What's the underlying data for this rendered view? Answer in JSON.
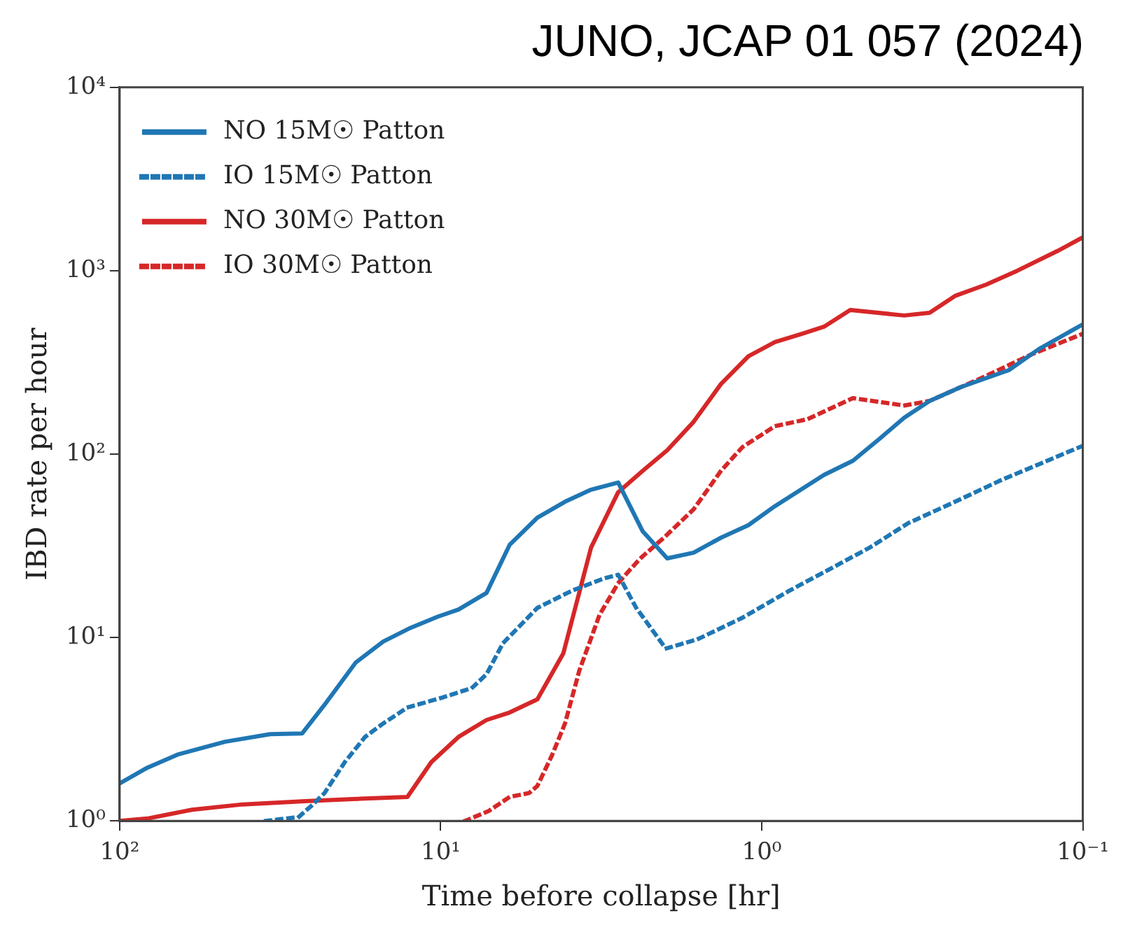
{
  "chart_data": {
    "type": "line",
    "title": "JUNO, JCAP 01 057 (2024)",
    "xlabel": "Time before collapse [hr]",
    "ylabel": "IBD rate per hour",
    "log": "xy",
    "grid": false,
    "legend": "top left",
    "marker": "none",
    "xlim": [
      100,
      0.1
    ],
    "xticks": [
      {
        "value": 100,
        "label": "10²"
      },
      {
        "value": 10,
        "label": "10¹"
      },
      {
        "value": 1,
        "label": "10⁰"
      },
      {
        "value": 0.1,
        "label": "10⁻¹"
      }
    ],
    "ylim": [
      1,
      10000
    ],
    "yticks": [
      {
        "value": 1,
        "label": "10⁰"
      },
      {
        "value": 10,
        "label": "10¹"
      },
      {
        "value": 100,
        "label": "10²"
      },
      {
        "value": 1000,
        "label": "10³"
      },
      {
        "value": 10000,
        "label": "10⁴"
      }
    ],
    "series": [
      {
        "name": "NO 15M☉ Patton",
        "color": "#1f77b4",
        "line_style": "solid",
        "x": [
          100,
          82,
          66,
          47,
          34,
          27,
          23,
          18.4,
          15.1,
          12.4,
          10.2,
          8.8,
          7.2,
          6.1,
          5.0,
          4.1,
          3.4,
          2.8,
          2.35,
          1.97,
          1.63,
          1.34,
          1.1,
          0.91,
          0.64,
          0.52,
          0.43,
          0.36,
          0.3,
          0.24,
          0.17,
          0.137,
          0.1
        ],
        "values": [
          1.6,
          1.95,
          2.3,
          2.7,
          2.97,
          3.0,
          4.3,
          7.3,
          9.5,
          11.3,
          13,
          14.2,
          17.5,
          32,
          45,
          55,
          64,
          70,
          38,
          27,
          29,
          35,
          41,
          52,
          77,
          92,
          121,
          158,
          195,
          232,
          287,
          374,
          510
        ]
      },
      {
        "name": "IO 15M☉ Patton",
        "color": "#1f77b4",
        "line_style": "dotted",
        "x": [
          35,
          27.7,
          25,
          23,
          19.9,
          17.2,
          15.1,
          12.7,
          9.9,
          8.0,
          7.2,
          6.4,
          5.0,
          3.9,
          3.1,
          2.8,
          2.46,
          1.99,
          1.58,
          1.15,
          0.82,
          0.59,
          0.46,
          0.35,
          0.25,
          0.18,
          0.1
        ],
        "values": [
          1.0,
          1.05,
          1.23,
          1.42,
          2.09,
          2.87,
          3.4,
          4.15,
          4.7,
          5.3,
          6.3,
          9.3,
          14.5,
          18,
          21,
          22,
          14.5,
          8.7,
          9.8,
          12.8,
          18,
          24.5,
          31,
          42,
          55,
          72,
          111
        ]
      },
      {
        "name": "NO 30M☉ Patton",
        "color": "#d62728",
        "line_style": "solid",
        "x": [
          100,
          82,
          59.5,
          41.4,
          26.4,
          17.8,
          12.7,
          10.7,
          8.8,
          7.2,
          6.1,
          5.0,
          4.15,
          3.4,
          2.8,
          2.35,
          1.97,
          1.63,
          1.34,
          1.1,
          0.91,
          0.75,
          0.64,
          0.53,
          0.36,
          0.3,
          0.25,
          0.2,
          0.16,
          0.12,
          0.1
        ],
        "values": [
          1.0,
          1.03,
          1.15,
          1.23,
          1.28,
          1.32,
          1.35,
          2.09,
          2.87,
          3.55,
          3.9,
          4.6,
          8.2,
          31,
          62,
          81,
          105,
          150,
          241,
          342,
          408,
          453,
          495,
          611,
          570,
          590,
          729,
          840,
          1000,
          1280,
          1520
        ]
      },
      {
        "name": "IO 30M☉ Patton",
        "color": "#d62728",
        "line_style": "dotted",
        "x": [
          8.4,
          7.1,
          6.1,
          5.3,
          5.0,
          4.5,
          4.1,
          3.7,
          3.2,
          2.8,
          2.4,
          2.0,
          1.63,
          1.34,
          1.15,
          0.91,
          0.72,
          0.52,
          0.36,
          0.3,
          0.2,
          0.146,
          0.1
        ],
        "values": [
          1.0,
          1.13,
          1.35,
          1.42,
          1.55,
          2.28,
          3.4,
          6.6,
          13.3,
          19.8,
          26.8,
          35.5,
          50,
          81,
          109,
          142,
          155,
          202,
          184,
          195,
          267,
          347,
          453
        ]
      }
    ]
  }
}
